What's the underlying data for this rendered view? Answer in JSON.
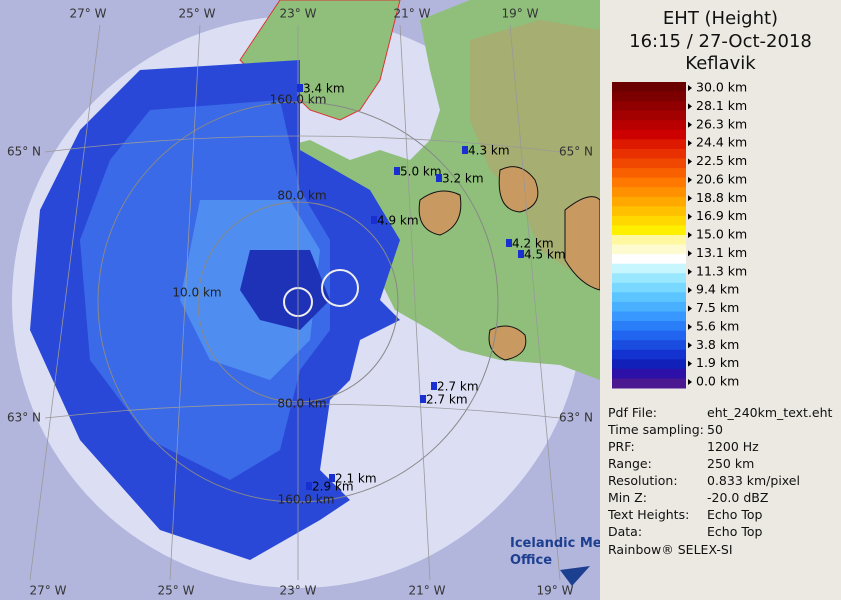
{
  "panel": {
    "title": [
      "EHT (Height)",
      "16:15 / 27-Oct-2018",
      "Keflavik"
    ],
    "legend": [
      "30.0 km",
      "28.1 km",
      "26.3 km",
      "24.4 km",
      "22.5 km",
      "20.6 km",
      "18.8 km",
      "16.9 km",
      "15.0 km",
      "13.1 km",
      "11.3 km",
      "9.4 km",
      "7.5 km",
      "5.6 km",
      "3.8 km",
      "1.9 km",
      "0.0 km"
    ],
    "info": [
      [
        "Pdf File:",
        "eht_240km_text.eht"
      ],
      [
        "Time sampling:",
        "50"
      ],
      [
        "PRF:",
        "1200 Hz"
      ],
      [
        "Range:",
        "250 km"
      ],
      [
        "Resolution:",
        "0.833 km/pixel"
      ],
      [
        "Min Z:",
        "-20.0 dBZ"
      ],
      [
        "Text Heights:",
        "Echo Top"
      ],
      [
        "Data:",
        "Echo Top"
      ]
    ],
    "footer": "Rainbow® SELEX-SI"
  },
  "map": {
    "graticule": {
      "top": [
        "27° W",
        "25° W",
        "23° W",
        "21° W",
        "19° W"
      ],
      "bottom": [
        "27° W",
        "25° W",
        "23° W",
        "21° W",
        "19° W"
      ],
      "left": [
        "65° N",
        "63° N"
      ],
      "right": [
        "65° N",
        "63° N"
      ]
    },
    "rings": [
      "160.0 km",
      "80.0 km",
      "10.0 km",
      "80.0 km",
      "160.0 km"
    ],
    "echo_tops": [
      "3.4 km",
      "4.3 km",
      "5.0 km",
      "3.2 km",
      "4.9 km",
      "4.2 km",
      "4.5 km",
      "2.7 km",
      "2.7 km",
      "2.1 km",
      "2.9 km"
    ],
    "logo": [
      "Icelandic Met",
      "Office"
    ]
  }
}
